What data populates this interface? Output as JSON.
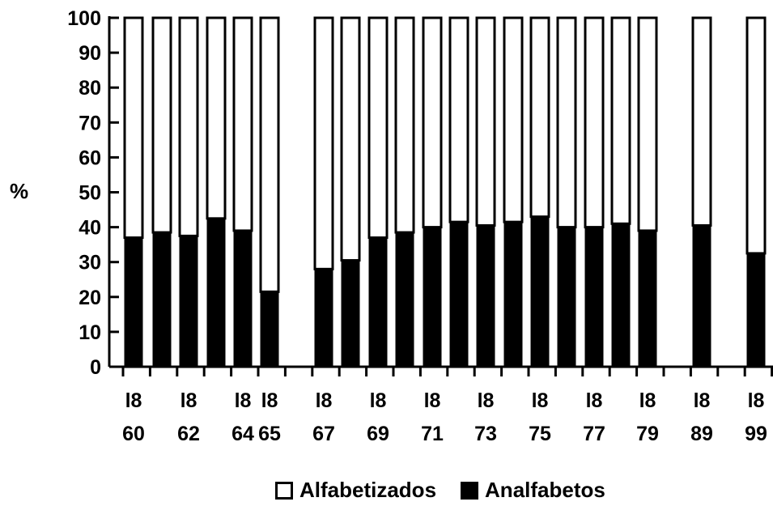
{
  "chart_data": {
    "type": "bar",
    "stacked": true,
    "ylabel": "%",
    "ylim": [
      0,
      100
    ],
    "yticks": [
      "0",
      "10",
      "20",
      "30",
      "40",
      "50",
      "60",
      "70",
      "80",
      "90",
      "100"
    ],
    "categories": [
      "1860",
      "1861",
      "1862",
      "1863",
      "1864",
      "1865",
      "1867",
      "1868",
      "1869",
      "1870",
      "1871",
      "1872",
      "1873",
      "1874",
      "1875",
      "1876",
      "1877",
      "1878",
      "1879",
      "1889",
      "1899"
    ],
    "xtick_labels": [
      {
        "top": "l8",
        "bottom": "60"
      },
      {
        "top": "l8",
        "bottom": "62"
      },
      {
        "top": "l8",
        "bottom": "64"
      },
      {
        "top": "l8",
        "bottom": "65"
      },
      {
        "top": "l8",
        "bottom": "67"
      },
      {
        "top": "l8",
        "bottom": "69"
      },
      {
        "top": "l8",
        "bottom": "71"
      },
      {
        "top": "l8",
        "bottom": "73"
      },
      {
        "top": "l8",
        "bottom": "75"
      },
      {
        "top": "l8",
        "bottom": "77"
      },
      {
        "top": "l8",
        "bottom": "79"
      },
      {
        "top": "l8",
        "bottom": "89"
      },
      {
        "top": "l8",
        "bottom": "99"
      }
    ],
    "series": [
      {
        "name": "Analfabetos",
        "color": "#000000",
        "values": [
          37,
          38.5,
          37.5,
          42.5,
          39,
          21.5,
          28,
          30.5,
          37,
          38.5,
          40,
          41.5,
          40.5,
          41.5,
          43,
          40,
          40,
          41,
          39,
          40.5,
          32.5
        ]
      },
      {
        "name": "Alfabetizados",
        "color": "#ffffff",
        "values": [
          63,
          61.5,
          62.5,
          57.5,
          61,
          78.5,
          72,
          69.5,
          63,
          61.5,
          60,
          58.5,
          59.5,
          58.5,
          57,
          60,
          60,
          59,
          61,
          59.5,
          67.5
        ]
      }
    ],
    "legend": {
      "placement": "bottom-center",
      "entries": [
        "Alfabetizados",
        "Analfabetos"
      ]
    },
    "grid": false
  }
}
